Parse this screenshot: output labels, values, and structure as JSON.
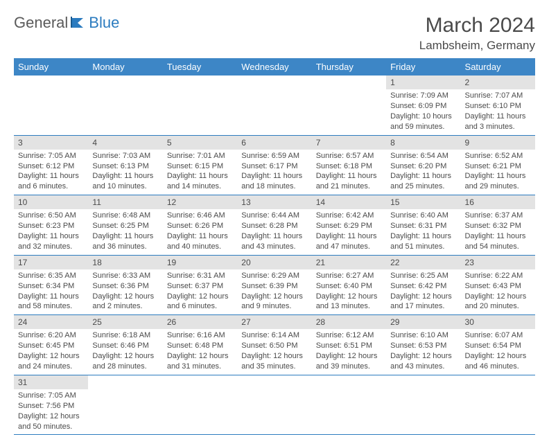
{
  "logo": {
    "general": "General",
    "blue": "Blue"
  },
  "title": "March 2024",
  "location": "Lambsheim, Germany",
  "colors": {
    "header_bg": "#3d86c6",
    "header_text": "#ffffff",
    "daynum_bg": "#e3e3e3",
    "border": "#2b7bbf",
    "text": "#4a4a4a",
    "logo_blue": "#2b7bbf"
  },
  "weekdays": [
    "Sunday",
    "Monday",
    "Tuesday",
    "Wednesday",
    "Thursday",
    "Friday",
    "Saturday"
  ],
  "weeks": [
    [
      null,
      null,
      null,
      null,
      null,
      {
        "n": "1",
        "sr": "Sunrise: 7:09 AM",
        "ss": "Sunset: 6:09 PM",
        "dl": "Daylight: 10 hours and 59 minutes."
      },
      {
        "n": "2",
        "sr": "Sunrise: 7:07 AM",
        "ss": "Sunset: 6:10 PM",
        "dl": "Daylight: 11 hours and 3 minutes."
      }
    ],
    [
      {
        "n": "3",
        "sr": "Sunrise: 7:05 AM",
        "ss": "Sunset: 6:12 PM",
        "dl": "Daylight: 11 hours and 6 minutes."
      },
      {
        "n": "4",
        "sr": "Sunrise: 7:03 AM",
        "ss": "Sunset: 6:13 PM",
        "dl": "Daylight: 11 hours and 10 minutes."
      },
      {
        "n": "5",
        "sr": "Sunrise: 7:01 AM",
        "ss": "Sunset: 6:15 PM",
        "dl": "Daylight: 11 hours and 14 minutes."
      },
      {
        "n": "6",
        "sr": "Sunrise: 6:59 AM",
        "ss": "Sunset: 6:17 PM",
        "dl": "Daylight: 11 hours and 18 minutes."
      },
      {
        "n": "7",
        "sr": "Sunrise: 6:57 AM",
        "ss": "Sunset: 6:18 PM",
        "dl": "Daylight: 11 hours and 21 minutes."
      },
      {
        "n": "8",
        "sr": "Sunrise: 6:54 AM",
        "ss": "Sunset: 6:20 PM",
        "dl": "Daylight: 11 hours and 25 minutes."
      },
      {
        "n": "9",
        "sr": "Sunrise: 6:52 AM",
        "ss": "Sunset: 6:21 PM",
        "dl": "Daylight: 11 hours and 29 minutes."
      }
    ],
    [
      {
        "n": "10",
        "sr": "Sunrise: 6:50 AM",
        "ss": "Sunset: 6:23 PM",
        "dl": "Daylight: 11 hours and 32 minutes."
      },
      {
        "n": "11",
        "sr": "Sunrise: 6:48 AM",
        "ss": "Sunset: 6:25 PM",
        "dl": "Daylight: 11 hours and 36 minutes."
      },
      {
        "n": "12",
        "sr": "Sunrise: 6:46 AM",
        "ss": "Sunset: 6:26 PM",
        "dl": "Daylight: 11 hours and 40 minutes."
      },
      {
        "n": "13",
        "sr": "Sunrise: 6:44 AM",
        "ss": "Sunset: 6:28 PM",
        "dl": "Daylight: 11 hours and 43 minutes."
      },
      {
        "n": "14",
        "sr": "Sunrise: 6:42 AM",
        "ss": "Sunset: 6:29 PM",
        "dl": "Daylight: 11 hours and 47 minutes."
      },
      {
        "n": "15",
        "sr": "Sunrise: 6:40 AM",
        "ss": "Sunset: 6:31 PM",
        "dl": "Daylight: 11 hours and 51 minutes."
      },
      {
        "n": "16",
        "sr": "Sunrise: 6:37 AM",
        "ss": "Sunset: 6:32 PM",
        "dl": "Daylight: 11 hours and 54 minutes."
      }
    ],
    [
      {
        "n": "17",
        "sr": "Sunrise: 6:35 AM",
        "ss": "Sunset: 6:34 PM",
        "dl": "Daylight: 11 hours and 58 minutes."
      },
      {
        "n": "18",
        "sr": "Sunrise: 6:33 AM",
        "ss": "Sunset: 6:36 PM",
        "dl": "Daylight: 12 hours and 2 minutes."
      },
      {
        "n": "19",
        "sr": "Sunrise: 6:31 AM",
        "ss": "Sunset: 6:37 PM",
        "dl": "Daylight: 12 hours and 6 minutes."
      },
      {
        "n": "20",
        "sr": "Sunrise: 6:29 AM",
        "ss": "Sunset: 6:39 PM",
        "dl": "Daylight: 12 hours and 9 minutes."
      },
      {
        "n": "21",
        "sr": "Sunrise: 6:27 AM",
        "ss": "Sunset: 6:40 PM",
        "dl": "Daylight: 12 hours and 13 minutes."
      },
      {
        "n": "22",
        "sr": "Sunrise: 6:25 AM",
        "ss": "Sunset: 6:42 PM",
        "dl": "Daylight: 12 hours and 17 minutes."
      },
      {
        "n": "23",
        "sr": "Sunrise: 6:22 AM",
        "ss": "Sunset: 6:43 PM",
        "dl": "Daylight: 12 hours and 20 minutes."
      }
    ],
    [
      {
        "n": "24",
        "sr": "Sunrise: 6:20 AM",
        "ss": "Sunset: 6:45 PM",
        "dl": "Daylight: 12 hours and 24 minutes."
      },
      {
        "n": "25",
        "sr": "Sunrise: 6:18 AM",
        "ss": "Sunset: 6:46 PM",
        "dl": "Daylight: 12 hours and 28 minutes."
      },
      {
        "n": "26",
        "sr": "Sunrise: 6:16 AM",
        "ss": "Sunset: 6:48 PM",
        "dl": "Daylight: 12 hours and 31 minutes."
      },
      {
        "n": "27",
        "sr": "Sunrise: 6:14 AM",
        "ss": "Sunset: 6:50 PM",
        "dl": "Daylight: 12 hours and 35 minutes."
      },
      {
        "n": "28",
        "sr": "Sunrise: 6:12 AM",
        "ss": "Sunset: 6:51 PM",
        "dl": "Daylight: 12 hours and 39 minutes."
      },
      {
        "n": "29",
        "sr": "Sunrise: 6:10 AM",
        "ss": "Sunset: 6:53 PM",
        "dl": "Daylight: 12 hours and 43 minutes."
      },
      {
        "n": "30",
        "sr": "Sunrise: 6:07 AM",
        "ss": "Sunset: 6:54 PM",
        "dl": "Daylight: 12 hours and 46 minutes."
      }
    ],
    [
      {
        "n": "31",
        "sr": "Sunrise: 7:05 AM",
        "ss": "Sunset: 7:56 PM",
        "dl": "Daylight: 12 hours and 50 minutes."
      },
      null,
      null,
      null,
      null,
      null,
      null
    ]
  ]
}
